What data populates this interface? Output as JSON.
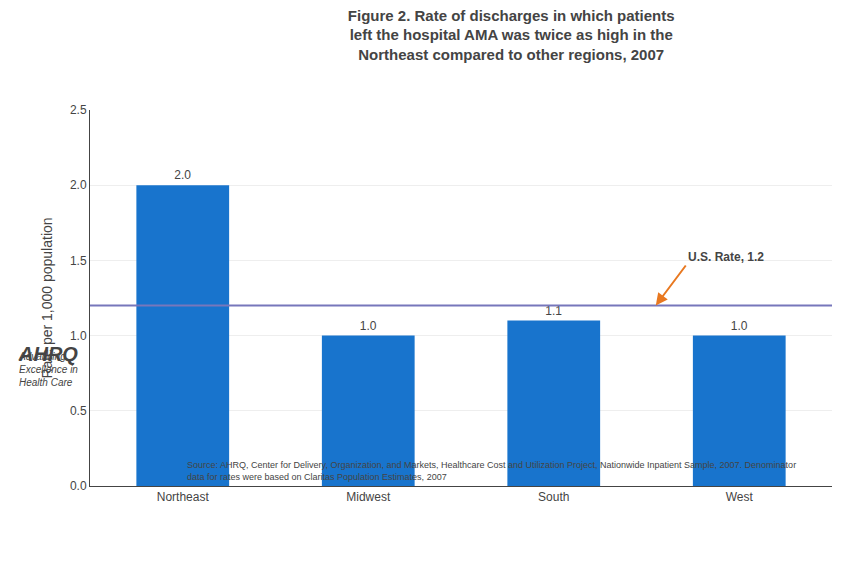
{
  "chart_data": {
    "type": "bar",
    "title": "Figure 2. Rate of discharges in which patients\nleft the hospital AMA was twice as high in the\nNortheast compared to other regions, 2007",
    "ylabel": "Rate per 1,000 population",
    "categories": [
      "Northeast",
      "Midwest",
      "South",
      "West"
    ],
    "values": [
      2.0,
      1.0,
      1.1,
      1.0
    ],
    "value_labels": [
      "2.0",
      "1.0",
      "1.1",
      "1.0"
    ],
    "data_labels": true,
    "color": "#1874CD",
    "ylim": [
      0,
      2.5
    ],
    "yticks": [
      {
        "value": 0.0,
        "label": "0.0"
      },
      {
        "value": 0.5,
        "label": "0.5"
      },
      {
        "value": 1.0,
        "label": "1.0"
      },
      {
        "value": 1.5,
        "label": "1.5"
      },
      {
        "value": 2.0,
        "label": "2.0"
      },
      {
        "value": 2.5,
        "label": "2.5"
      }
    ],
    "grid": true,
    "reference_line": {
      "value": 1.2,
      "label": "U.S. Rate, 1.2",
      "color": "#7777BB",
      "arrow_color": "#E87820"
    },
    "annotations": [
      "AHRQ",
      "Advancing\nExcellence in\nHealth Care"
    ],
    "source": "Source: AHRQ, Center for Delivery, Organization, and Markets, Healthcare Cost and Utilization Project, Nationwide Inpatient Sample, 2007. Denominator\ndata for rates were based on Claritas Population Estimates, 2007"
  }
}
